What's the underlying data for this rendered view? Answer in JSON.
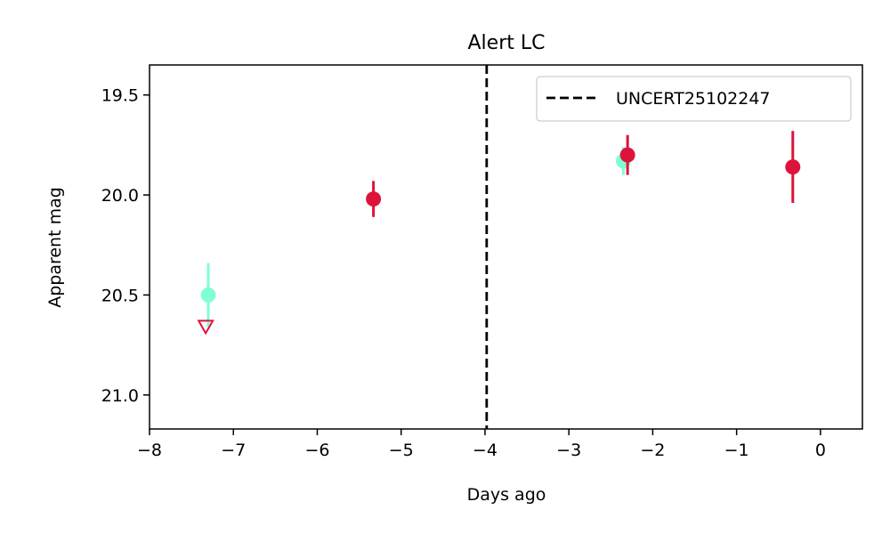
{
  "chart_data": {
    "type": "scatter",
    "title": "Alert LC",
    "xlabel": "Days ago",
    "ylabel": "Apparent mag",
    "xlim": [
      -8,
      0.5
    ],
    "ylim": [
      21.17,
      19.35
    ],
    "y_inverted": true,
    "grid": false,
    "legend_position": "top-right",
    "x_ticks": [
      {
        "value": -8,
        "label": "−8"
      },
      {
        "value": -7,
        "label": "−7"
      },
      {
        "value": -6,
        "label": "−6"
      },
      {
        "value": -5,
        "label": "−5"
      },
      {
        "value": -4,
        "label": "−4"
      },
      {
        "value": -3,
        "label": "−3"
      },
      {
        "value": -2,
        "label": "−2"
      },
      {
        "value": -1,
        "label": "−1"
      },
      {
        "value": 0,
        "label": "0"
      }
    ],
    "y_ticks": [
      {
        "value": 19.5,
        "label": "19.5"
      },
      {
        "value": 20.0,
        "label": "20.0"
      },
      {
        "value": 20.5,
        "label": "20.5"
      },
      {
        "value": 21.0,
        "label": "21.0"
      }
    ],
    "series": [
      {
        "color": "#7fffd4",
        "points": [
          {
            "x": -7.3,
            "y": 20.5,
            "err": 0.16
          },
          {
            "x": -2.35,
            "y": 19.83,
            "err": 0.07
          }
        ]
      },
      {
        "color": "#dc143c",
        "points": [
          {
            "x": -5.33,
            "y": 20.02,
            "err": 0.09
          },
          {
            "x": -2.3,
            "y": 19.8,
            "err": 0.1
          },
          {
            "x": -0.33,
            "y": 19.86,
            "err": 0.18
          }
        ]
      }
    ],
    "upper_limits": [
      {
        "x": -7.33,
        "y": 20.66,
        "color": "#dc143c"
      }
    ],
    "vlines": [
      {
        "x": -3.98,
        "label": "UNCERT25102247",
        "color": "#000000",
        "style": "dashed"
      }
    ]
  }
}
